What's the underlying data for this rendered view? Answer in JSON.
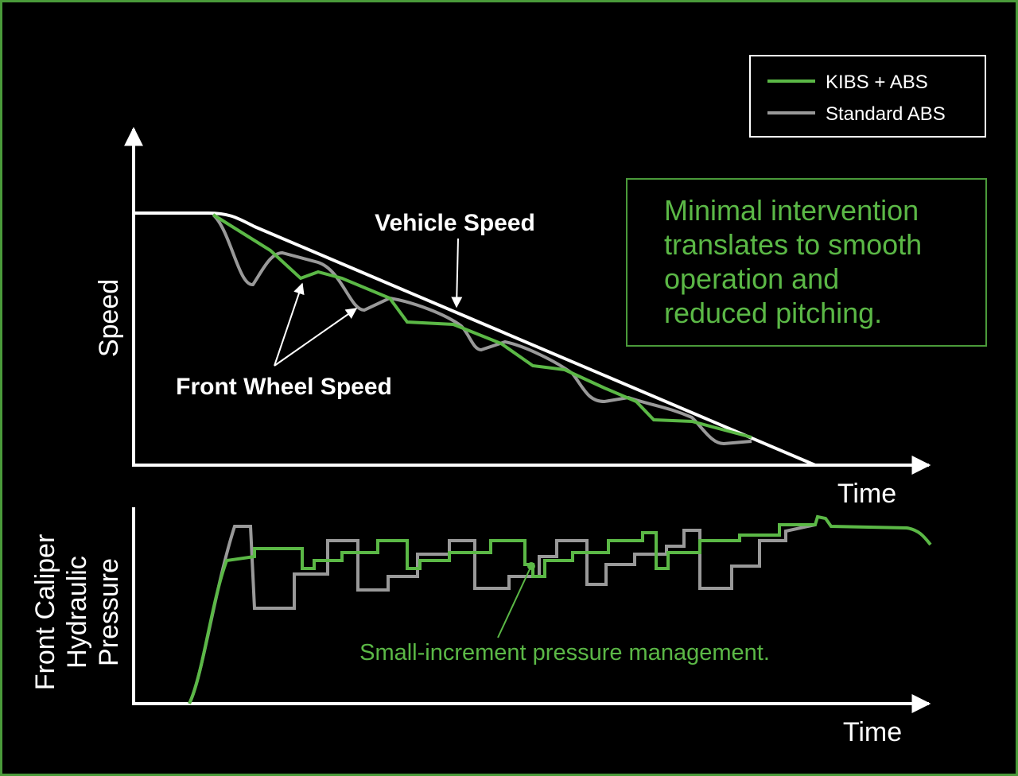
{
  "legend": {
    "items": [
      "KIBS + ABS",
      "Standard ABS"
    ]
  },
  "callout": {
    "lines": [
      "Minimal intervention",
      "translates to smooth",
      "operation and",
      "reduced pitching."
    ]
  },
  "speed_panel": {
    "y_label": "Speed",
    "x_label": "Time",
    "annotations": [
      "Vehicle Speed",
      "Front Wheel Speed"
    ]
  },
  "pressure_panel": {
    "y_label_lines": [
      "Front Caliper",
      "Hydraulic",
      "Pressure"
    ],
    "x_label": "Time",
    "annotation": "Small-increment pressure management."
  }
}
